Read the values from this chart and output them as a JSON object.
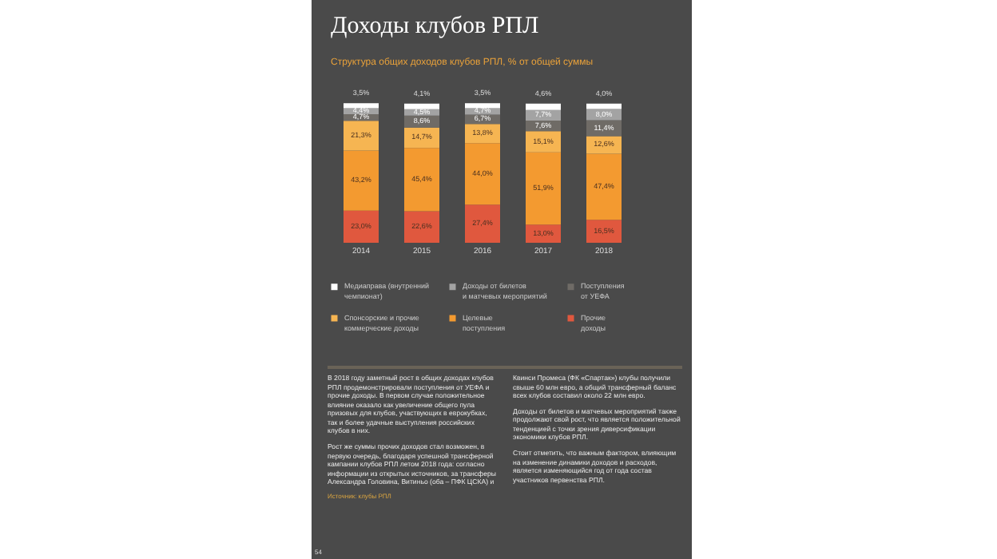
{
  "chart_data": {
    "type": "bar",
    "title": "Доходы клубов РПЛ",
    "subtitle": "Структура общих доходов клубов РПЛ, % от общей суммы",
    "categories": [
      "2014",
      "2015",
      "2016",
      "2017",
      "2018"
    ],
    "stacked": true,
    "legend": "bottom",
    "series": [
      {
        "name": "Прочие доходы",
        "color": "#e0583e",
        "values": [
          23.0,
          22.6,
          27.4,
          13.0,
          16.5
        ],
        "value_labels": [
          "23,0%",
          "22,6%",
          "27,4%",
          "13,0%",
          "16,5%"
        ]
      },
      {
        "name": "Целевые поступления",
        "color": "#f39a30",
        "values": [
          43.2,
          45.4,
          44.0,
          51.9,
          47.4
        ],
        "value_labels": [
          "43,2%",
          "45,4%",
          "44,0%",
          "51,9%",
          "47,4%"
        ]
      },
      {
        "name": "Спонсорские и прочие коммерческие доходы",
        "color": "#f6b552",
        "values": [
          21.3,
          14.7,
          13.8,
          15.1,
          12.6
        ],
        "value_labels": [
          "21,3%",
          "14,7%",
          "13,8%",
          "15,1%",
          "12,6%"
        ]
      },
      {
        "name": "Поступления от УЕФА",
        "color": "#6f6b66",
        "values": [
          4.7,
          8.6,
          6.7,
          7.6,
          11.4
        ],
        "value_labels": [
          "4,7%",
          "8,6%",
          "6,7%",
          "7,6%",
          "11,4%"
        ]
      },
      {
        "name": "Доходы от билетов и матчевых мероприятий",
        "color": "#a3a3a3",
        "values": [
          4.4,
          4.5,
          4.7,
          7.7,
          8.0
        ],
        "value_labels": [
          "4,4%",
          "4,5%",
          "4,7%",
          "7,7%",
          "8,0%"
        ]
      },
      {
        "name": "Медиаправа (внутренний чемпионат)",
        "color": "#ffffff",
        "values": [
          3.5,
          4.1,
          3.5,
          4.6,
          4.0
        ],
        "value_labels": [
          "3,5%",
          "4,1%",
          "3,5%",
          "4,6%",
          "4,0%"
        ]
      }
    ],
    "annotations": [
      "В 2018 году заметный рост в общих доходах клубов РПЛ продемонстрировали поступления от УЕФА и прочие доходы. В первом случае положительное влияние оказало как увеличение общего пула призовых для клубов, участвующих в еврокубках, так и более удачные выступления российских клубов в них.",
      "Рост же суммы прочих доходов стал возможен, в первую очередь, благодаря успешной трансферной кампании клубов РПЛ летом 2018 года: согласно информации из открытых источников, за трансферы Александра Головина, Витиньо (оба – ПФК ЦСКА) и Квинси Промеса (ФК «Спартак») клубы получили свыше 60 млн евро, а общий трансферный баланс всех клубов составил около 22 млн евро.",
      "Доходы от билетов и матчевых мероприятий также продолжают свой рост, что является положительной тенденцией с точки зрения диверсификации экономики клубов РПЛ.",
      "Стоит отметить, что важным фактором, влияющим на изменение динамики доходов и расходов, является изменяющийся год от года состав участников первенства РПЛ.",
      "Источник: клубы РПЛ",
      "54"
    ]
  }
}
